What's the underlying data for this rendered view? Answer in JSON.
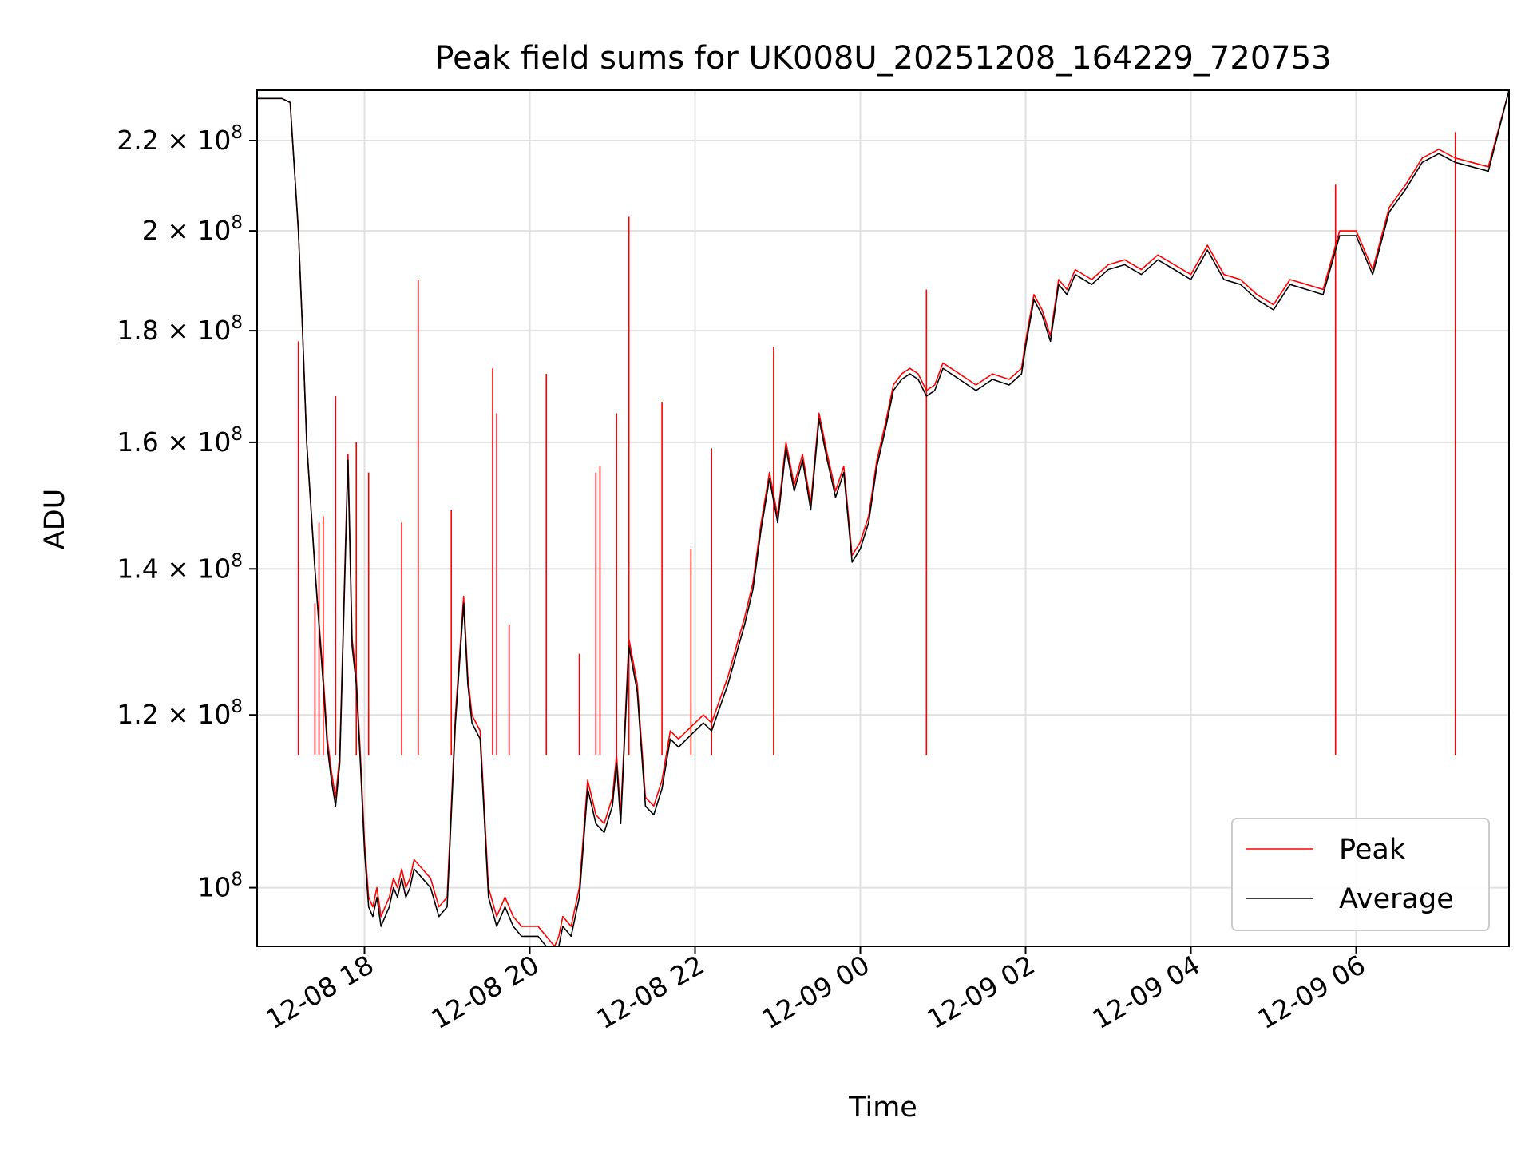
{
  "chart_data": {
    "type": "line",
    "title": "Peak field sums for UK008U_20251208_164229_720753",
    "xlabel": "Time",
    "ylabel": "ADU",
    "yscale": "log",
    "ylim": [
      94000000,
      232000000
    ],
    "xlim": [
      -1.3,
      13.85
    ],
    "x_units": "hours since 12-08 18:00",
    "grid": true,
    "legend_position": "lower right",
    "x_ticks": [
      {
        "label": "12-08 18",
        "value": 0
      },
      {
        "label": "12-08 20",
        "value": 2
      },
      {
        "label": "12-08 22",
        "value": 4
      },
      {
        "label": "12-09 00",
        "value": 6
      },
      {
        "label": "12-09 02",
        "value": 8
      },
      {
        "label": "12-09 04",
        "value": 10
      },
      {
        "label": "12-09 06",
        "value": 12
      }
    ],
    "y_ticks": [
      {
        "base": "10",
        "exp": "8",
        "value": 100000000
      },
      {
        "base": "1.2 × 10",
        "exp": "8",
        "value": 120000000
      },
      {
        "base": "1.4 × 10",
        "exp": "8",
        "value": 140000000
      },
      {
        "base": "1.6 × 10",
        "exp": "8",
        "value": 160000000
      },
      {
        "base": "1.8 × 10",
        "exp": "8",
        "value": 180000000
      },
      {
        "base": "2 × 10",
        "exp": "8",
        "value": 200000000
      },
      {
        "base": "2.2 × 10",
        "exp": "8",
        "value": 220000000
      }
    ],
    "series": [
      {
        "name": "Peak",
        "color": "#ff0000",
        "x": [
          -1.3,
          -1.1,
          -1.0,
          -0.9,
          -0.8,
          -0.75,
          -0.7,
          -0.6,
          -0.5,
          -0.45,
          -0.4,
          -0.35,
          -0.3,
          -0.25,
          -0.2,
          -0.15,
          -0.1,
          -0.05,
          0.0,
          0.05,
          0.1,
          0.15,
          0.2,
          0.25,
          0.3,
          0.35,
          0.4,
          0.45,
          0.5,
          0.55,
          0.6,
          0.7,
          0.8,
          0.9,
          1.0,
          1.1,
          1.2,
          1.25,
          1.3,
          1.4,
          1.5,
          1.6,
          1.65,
          1.7,
          1.8,
          1.9,
          2.0,
          2.1,
          2.2,
          2.3,
          2.35,
          2.4,
          2.5,
          2.6,
          2.7,
          2.75,
          2.8,
          2.9,
          3.0,
          3.05,
          3.1,
          3.2,
          3.3,
          3.4,
          3.5,
          3.6,
          3.7,
          3.8,
          3.9,
          4.0,
          4.1,
          4.2,
          4.3,
          4.4,
          4.5,
          4.6,
          4.7,
          4.8,
          4.9,
          5.0,
          5.1,
          5.2,
          5.3,
          5.4,
          5.5,
          5.6,
          5.7,
          5.8,
          5.9,
          6.0,
          6.1,
          6.2,
          6.3,
          6.4,
          6.5,
          6.6,
          6.7,
          6.8,
          6.9,
          7.0,
          7.2,
          7.4,
          7.6,
          7.8,
          7.95,
          8.0,
          8.1,
          8.2,
          8.3,
          8.4,
          8.5,
          8.6,
          8.8,
          9.0,
          9.2,
          9.4,
          9.6,
          9.8,
          10.0,
          10.2,
          10.4,
          10.6,
          10.8,
          11.0,
          11.2,
          11.4,
          11.6,
          11.8,
          12.0,
          12.2,
          12.4,
          12.6,
          12.8,
          13.0,
          13.2,
          13.4,
          13.6,
          13.85
        ],
        "values": [
          230000000.0,
          230000000.0,
          230000000.0,
          229000000.0,
          200000000.0,
          180000000.0,
          160000000.0,
          140000000.0,
          125000000.0,
          117000000.0,
          113000000.0,
          110000000.0,
          115000000.0,
          135000000.0,
          158000000.0,
          130000000.0,
          125000000.0,
          115000000.0,
          105000000.0,
          99000000.0,
          98000000.0,
          100000000.0,
          97000000.0,
          98000000.0,
          99000000.0,
          101000000.0,
          100000000.0,
          102000000.0,
          100000000.0,
          101000000.0,
          103000000.0,
          102000000.0,
          101000000.0,
          98000000.0,
          99000000.0,
          120000000.0,
          136000000.0,
          125000000.0,
          120000000.0,
          118000000.0,
          100000000.0,
          97000000.0,
          98000000.0,
          99000000.0,
          97000000.0,
          96000000.0,
          96000000.0,
          96000000.0,
          95000000.0,
          94000000.0,
          95000000.0,
          97000000.0,
          96000000.0,
          100000000.0,
          112000000.0,
          110000000.0,
          108000000.0,
          107000000.0,
          110000000.0,
          115000000.0,
          108000000.0,
          130000000.0,
          124000000.0,
          110000000.0,
          109000000.0,
          112000000.0,
          118000000.0,
          117000000.0,
          118000000.0,
          119000000.0,
          120000000.0,
          119000000.0,
          122000000.0,
          125000000.0,
          129000000.0,
          133000000.0,
          138000000.0,
          147000000.0,
          155000000.0,
          148000000.0,
          160000000.0,
          153000000.0,
          158000000.0,
          150000000.0,
          165000000.0,
          158000000.0,
          152000000.0,
          156000000.0,
          142000000.0,
          144000000.0,
          148000000.0,
          157000000.0,
          163000000.0,
          170000000.0,
          172000000.0,
          173000000.0,
          172000000.0,
          169000000.0,
          170000000.0,
          174000000.0,
          172000000.0,
          170000000.0,
          172000000.0,
          171000000.0,
          173000000.0,
          178000000.0,
          187000000.0,
          184000000.0,
          179000000.0,
          190000000.0,
          188000000.0,
          192000000.0,
          190000000.0,
          193000000.0,
          194000000.0,
          192000000.0,
          195000000.0,
          193000000.0,
          191000000.0,
          197000000.0,
          191000000.0,
          190000000.0,
          187000000.0,
          185000000.0,
          190000000.0,
          189000000.0,
          188000000.0,
          200000000.0,
          200000000.0,
          192000000.0,
          205000000.0,
          210000000.0,
          216000000.0,
          218000000.0,
          216000000.0,
          215000000.0,
          214000000.0,
          232000000.0
        ],
        "spikes": [
          [
            -0.8,
            178000000.0
          ],
          [
            -0.6,
            135000000.0
          ],
          [
            -0.55,
            147000000.0
          ],
          [
            -0.5,
            148000000.0
          ],
          [
            -0.35,
            168000000.0
          ],
          [
            -0.1,
            160000000.0
          ],
          [
            0.05,
            155000000.0
          ],
          [
            0.45,
            147000000.0
          ],
          [
            0.65,
            190000000.0
          ],
          [
            1.05,
            149000000.0
          ],
          [
            1.55,
            173000000.0
          ],
          [
            1.6,
            165000000.0
          ],
          [
            1.75,
            132000000.0
          ],
          [
            2.2,
            172000000.0
          ],
          [
            2.6,
            128000000.0
          ],
          [
            2.8,
            155000000.0
          ],
          [
            2.85,
            156000000.0
          ],
          [
            3.05,
            165000000.0
          ],
          [
            3.2,
            203000000.0
          ],
          [
            3.6,
            167000000.0
          ],
          [
            3.95,
            143000000.0
          ],
          [
            4.2,
            159000000.0
          ],
          [
            4.95,
            177000000.0
          ],
          [
            6.8,
            188000000.0
          ],
          [
            11.75,
            210000000.0
          ],
          [
            13.2,
            222000000.0
          ]
        ]
      },
      {
        "name": "Average",
        "color": "#000000",
        "x": [
          -1.3,
          -1.1,
          -1.0,
          -0.9,
          -0.8,
          -0.75,
          -0.7,
          -0.6,
          -0.5,
          -0.45,
          -0.4,
          -0.35,
          -0.3,
          -0.25,
          -0.2,
          -0.15,
          -0.1,
          -0.05,
          0.0,
          0.05,
          0.1,
          0.15,
          0.2,
          0.25,
          0.3,
          0.35,
          0.4,
          0.45,
          0.5,
          0.55,
          0.6,
          0.7,
          0.8,
          0.9,
          1.0,
          1.1,
          1.2,
          1.25,
          1.3,
          1.4,
          1.5,
          1.6,
          1.65,
          1.7,
          1.8,
          1.9,
          2.0,
          2.1,
          2.2,
          2.3,
          2.35,
          2.4,
          2.5,
          2.6,
          2.7,
          2.75,
          2.8,
          2.9,
          3.0,
          3.05,
          3.1,
          3.2,
          3.3,
          3.4,
          3.5,
          3.6,
          3.7,
          3.8,
          3.9,
          4.0,
          4.1,
          4.2,
          4.3,
          4.4,
          4.5,
          4.6,
          4.7,
          4.8,
          4.9,
          5.0,
          5.1,
          5.2,
          5.3,
          5.4,
          5.5,
          5.6,
          5.7,
          5.8,
          5.9,
          6.0,
          6.1,
          6.2,
          6.3,
          6.4,
          6.5,
          6.6,
          6.7,
          6.8,
          6.9,
          7.0,
          7.2,
          7.4,
          7.6,
          7.8,
          7.95,
          8.0,
          8.1,
          8.2,
          8.3,
          8.4,
          8.5,
          8.6,
          8.8,
          9.0,
          9.2,
          9.4,
          9.6,
          9.8,
          10.0,
          10.2,
          10.4,
          10.6,
          10.8,
          11.0,
          11.2,
          11.4,
          11.6,
          11.8,
          12.0,
          12.2,
          12.4,
          12.6,
          12.8,
          13.0,
          13.2,
          13.4,
          13.6,
          13.85
        ],
        "values": [
          230000000.0,
          230000000.0,
          230000000.0,
          229000000.0,
          200000000.0,
          180000000.0,
          160000000.0,
          140000000.0,
          124000000.0,
          116000000.0,
          112000000.0,
          109000000.0,
          114000000.0,
          134000000.0,
          157000000.0,
          129000000.0,
          124000000.0,
          114000000.0,
          104000000.0,
          98000000.0,
          97000000.0,
          99000000.0,
          96000000.0,
          97000000.0,
          98000000.0,
          100000000.0,
          99000000.0,
          101000000.0,
          99000000.0,
          100000000.0,
          102000000.0,
          101000000.0,
          100000000.0,
          97000000.0,
          98000000.0,
          119000000.0,
          135000000.0,
          124000000.0,
          119000000.0,
          117000000.0,
          99000000.0,
          96000000.0,
          97000000.0,
          98000000.0,
          96000000.0,
          95000000.0,
          95000000.0,
          95000000.0,
          94000000.0,
          93500000.0,
          94000000.0,
          96000000.0,
          95000000.0,
          99000000.0,
          111000000.0,
          109000000.0,
          107000000.0,
          106000000.0,
          109000000.0,
          114000000.0,
          107000000.0,
          129000000.0,
          123000000.0,
          109000000.0,
          108000000.0,
          111000000.0,
          117000000.0,
          116000000.0,
          117000000.0,
          118000000.0,
          119000000.0,
          118000000.0,
          121000000.0,
          124000000.0,
          128000000.0,
          132000000.0,
          137000000.0,
          146000000.0,
          154000000.0,
          147000000.0,
          159000000.0,
          152000000.0,
          157000000.0,
          149000000.0,
          164000000.0,
          157000000.0,
          151000000.0,
          155000000.0,
          141000000.0,
          143000000.0,
          147000000.0,
          156000000.0,
          162000000.0,
          169000000.0,
          171000000.0,
          172000000.0,
          171000000.0,
          168000000.0,
          169000000.0,
          173000000.0,
          171000000.0,
          169000000.0,
          171000000.0,
          170000000.0,
          172000000.0,
          177000000.0,
          186000000.0,
          183000000.0,
          178000000.0,
          189000000.0,
          187000000.0,
          191000000.0,
          189000000.0,
          192000000.0,
          193000000.0,
          191000000.0,
          194000000.0,
          192000000.0,
          190000000.0,
          196000000.0,
          190000000.0,
          189000000.0,
          186000000.0,
          184000000.0,
          189000000.0,
          188000000.0,
          187000000.0,
          199000000.0,
          199000000.0,
          191000000.0,
          204000000.0,
          209000000.0,
          215000000.0,
          217000000.0,
          215000000.0,
          214000000.0,
          213000000.0,
          232000000.0
        ]
      }
    ]
  }
}
